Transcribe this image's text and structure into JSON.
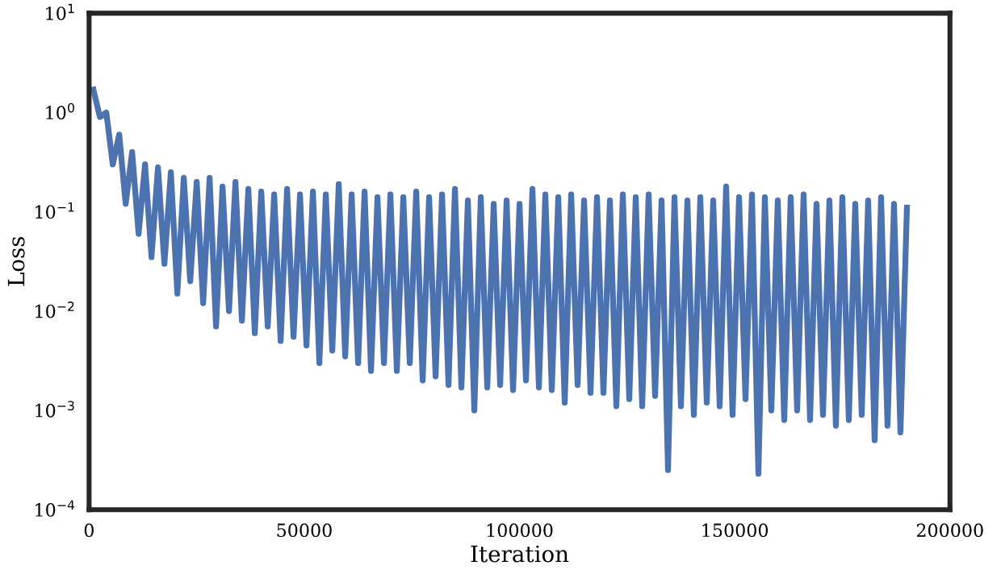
{
  "chart_data": {
    "type": "line",
    "xlabel": "Iteration",
    "ylabel": "Loss",
    "log": "y",
    "grid": false,
    "legend": false,
    "marker": "none",
    "line_style": "solid",
    "xlim": [
      0,
      200000
    ],
    "xticks": [
      0,
      50000,
      100000,
      150000,
      200000
    ],
    "ylim": [
      0.0001,
      10
    ],
    "yticks": [
      {
        "value": 0.0001,
        "label": "10$^{−4}$"
      },
      {
        "value": 0.001,
        "label": "10$^{−3}$"
      },
      {
        "value": 0.01,
        "label": "10$^{−2}$"
      },
      {
        "value": 0.1,
        "label": "10$^{−1}$"
      },
      {
        "value": 1,
        "label": "10$^{0}$"
      },
      {
        "value": 10,
        "label": "10$^{1}$"
      }
    ],
    "series": [
      {
        "color": "#4c72b0",
        "x": [
          1000,
          2500,
          4000,
          5500,
          7000,
          8500,
          10000,
          11500,
          13000,
          14500,
          16000,
          17500,
          19000,
          20500,
          22000,
          23500,
          25000,
          26500,
          28000,
          29500,
          31000,
          32500,
          34000,
          35500,
          37000,
          38500,
          40000,
          41500,
          43000,
          44500,
          46000,
          47500,
          49000,
          50500,
          52000,
          53500,
          55000,
          56500,
          58000,
          59500,
          61000,
          62500,
          64000,
          65500,
          67000,
          68500,
          70000,
          71500,
          73000,
          74500,
          76000,
          77500,
          79000,
          80500,
          82000,
          83500,
          85000,
          86500,
          88000,
          89500,
          91000,
          92500,
          94000,
          95500,
          97000,
          98500,
          100000,
          101500,
          103000,
          104500,
          106000,
          107500,
          109000,
          110500,
          112000,
          113500,
          115000,
          116500,
          118000,
          119500,
          121000,
          122500,
          124000,
          125500,
          127000,
          128500,
          130000,
          131500,
          133000,
          134500,
          136000,
          137500,
          139000,
          140500,
          142000,
          143500,
          145000,
          146500,
          148000,
          149500,
          151000,
          152500,
          154000,
          155500,
          157000,
          158500,
          160000,
          161500,
          163000,
          164500,
          166000,
          167500,
          169000,
          170500,
          172000,
          173500,
          175000,
          176500,
          178000,
          179500,
          181000,
          182500,
          184000,
          185500,
          187000,
          188500,
          190000
        ],
        "values": [
          1.7,
          0.9,
          1.0,
          0.3,
          0.6,
          0.12,
          0.4,
          0.06,
          0.3,
          0.035,
          0.28,
          0.03,
          0.25,
          0.015,
          0.22,
          0.02,
          0.2,
          0.012,
          0.22,
          0.007,
          0.18,
          0.01,
          0.2,
          0.008,
          0.17,
          0.006,
          0.16,
          0.007,
          0.15,
          0.005,
          0.17,
          0.0055,
          0.15,
          0.0045,
          0.16,
          0.003,
          0.15,
          0.004,
          0.19,
          0.0035,
          0.15,
          0.003,
          0.16,
          0.0025,
          0.14,
          0.003,
          0.15,
          0.0025,
          0.14,
          0.003,
          0.16,
          0.002,
          0.14,
          0.0022,
          0.15,
          0.0018,
          0.17,
          0.0017,
          0.13,
          0.001,
          0.14,
          0.0017,
          0.12,
          0.0018,
          0.13,
          0.0016,
          0.12,
          0.002,
          0.17,
          0.0017,
          0.15,
          0.0016,
          0.14,
          0.0012,
          0.15,
          0.0018,
          0.13,
          0.0015,
          0.14,
          0.0015,
          0.13,
          0.0011,
          0.15,
          0.0013,
          0.14,
          0.0011,
          0.15,
          0.0014,
          0.13,
          0.00025,
          0.14,
          0.0011,
          0.13,
          0.0009,
          0.14,
          0.0012,
          0.13,
          0.0011,
          0.18,
          0.0009,
          0.14,
          0.0013,
          0.15,
          0.00023,
          0.14,
          0.001,
          0.13,
          0.0008,
          0.14,
          0.001,
          0.15,
          0.0008,
          0.12,
          0.0009,
          0.13,
          0.0007,
          0.14,
          0.0008,
          0.12,
          0.0009,
          0.13,
          0.0005,
          0.14,
          0.0007,
          0.12,
          0.0006,
          0.11
        ]
      }
    ]
  }
}
